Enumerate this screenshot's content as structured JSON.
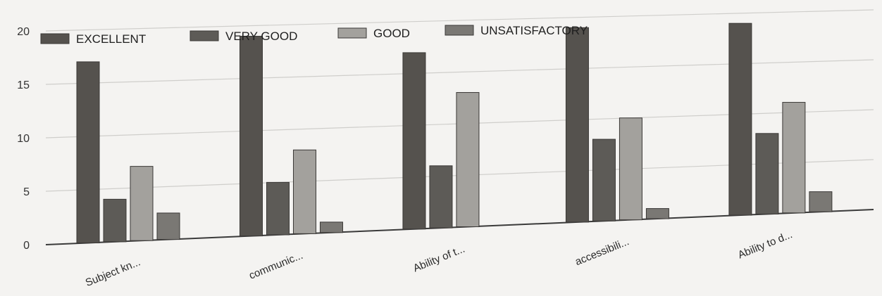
{
  "chart_data": {
    "type": "bar",
    "categories": [
      "Subject kn...",
      "communic...",
      "Ability of t...",
      "accessibili...",
      "Ability to d..."
    ],
    "series": [
      {
        "name": "EXCELLENT",
        "color": "#55524e",
        "values": [
          17,
          19,
          17,
          19,
          19
        ]
      },
      {
        "name": "VERY GOOD",
        "color": "#5d5b57",
        "values": [
          4,
          5,
          6,
          8,
          8
        ]
      },
      {
        "name": "GOOD",
        "color": "#a3a19d",
        "values": [
          7,
          8,
          13,
          10,
          11
        ]
      },
      {
        "name": "UNSATISFACTORY",
        "color": "#7a7874",
        "values": [
          2.5,
          1,
          0,
          1,
          2
        ]
      }
    ],
    "ylim": [
      0,
      20
    ],
    "yticks": [
      0,
      5,
      10,
      15,
      20
    ],
    "grid": true,
    "legend": "top-left"
  }
}
